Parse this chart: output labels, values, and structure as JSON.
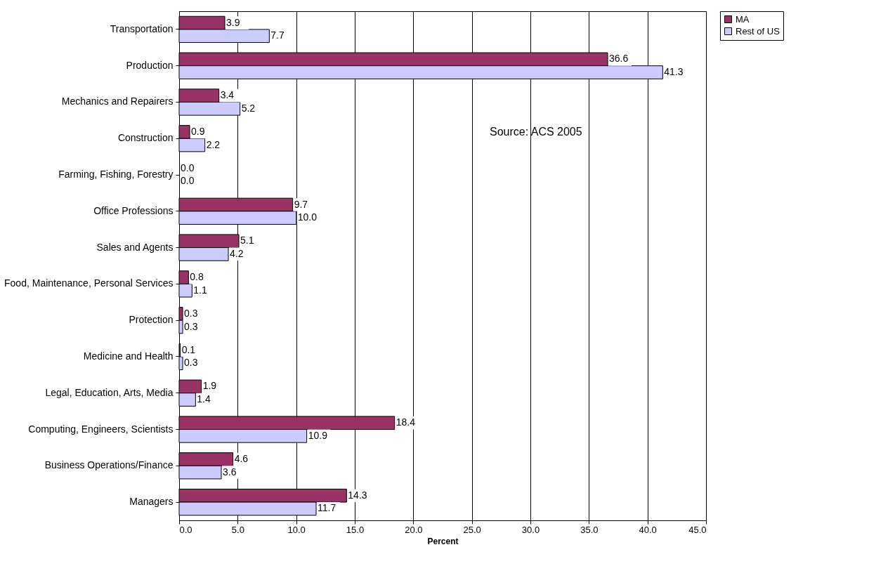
{
  "chart_data": {
    "type": "bar",
    "orientation": "horizontal",
    "xlabel": "Percent",
    "categories": [
      "Transportation",
      "Production",
      "Mechanics and Repairers",
      "Construction",
      "Farming, Fishing, Forestry",
      "Office Professions",
      "Sales and Agents",
      "Food, Maintenance, Personal Services",
      "Protection",
      "Medicine and Health",
      "Legal, Education, Arts, Media",
      "Computing, Engineers, Scientists",
      "Business Operations/Finance",
      "Managers"
    ],
    "series": [
      {
        "name": "MA",
        "color": "#993366",
        "values": [
          3.9,
          36.6,
          3.4,
          0.9,
          0.0,
          9.7,
          5.1,
          0.8,
          0.3,
          0.1,
          1.9,
          18.4,
          4.6,
          14.3
        ],
        "value_labels": [
          "3.9",
          "36.6",
          "3.4",
          "0.9",
          "0.0",
          "9.7",
          "5.1",
          "0.8",
          "0.3",
          "0.1",
          "1.9",
          "18.4",
          "4.6",
          "14.3"
        ]
      },
      {
        "name": "Rest of US",
        "color": "#ccccff",
        "values": [
          7.7,
          41.3,
          5.2,
          2.2,
          0.0,
          10.0,
          4.2,
          1.1,
          0.3,
          0.3,
          1.4,
          10.9,
          3.6,
          11.7
        ],
        "value_labels": [
          "7.7",
          "41.3",
          "5.2",
          "2.2",
          "0.0",
          "10.0",
          "4.2",
          "1.1",
          "0.3",
          "0.3",
          "1.4",
          "10.9",
          "3.6",
          "11.7"
        ]
      }
    ],
    "xlim": [
      0,
      45
    ],
    "xticks": [
      {
        "value": 0,
        "label": "0.0"
      },
      {
        "value": 5,
        "label": "5.0"
      },
      {
        "value": 10,
        "label": "10.0"
      },
      {
        "value": 15,
        "label": "15.0"
      },
      {
        "value": 20,
        "label": "20.0"
      },
      {
        "value": 25,
        "label": "25.0"
      },
      {
        "value": 30,
        "label": "30.0"
      },
      {
        "value": 35,
        "label": "35.0"
      },
      {
        "value": 40,
        "label": "40.0"
      },
      {
        "value": 45,
        "label": "45.0"
      }
    ],
    "grid": "x",
    "legend": "right",
    "annotations": [
      "Source: ACS 2005"
    ]
  }
}
